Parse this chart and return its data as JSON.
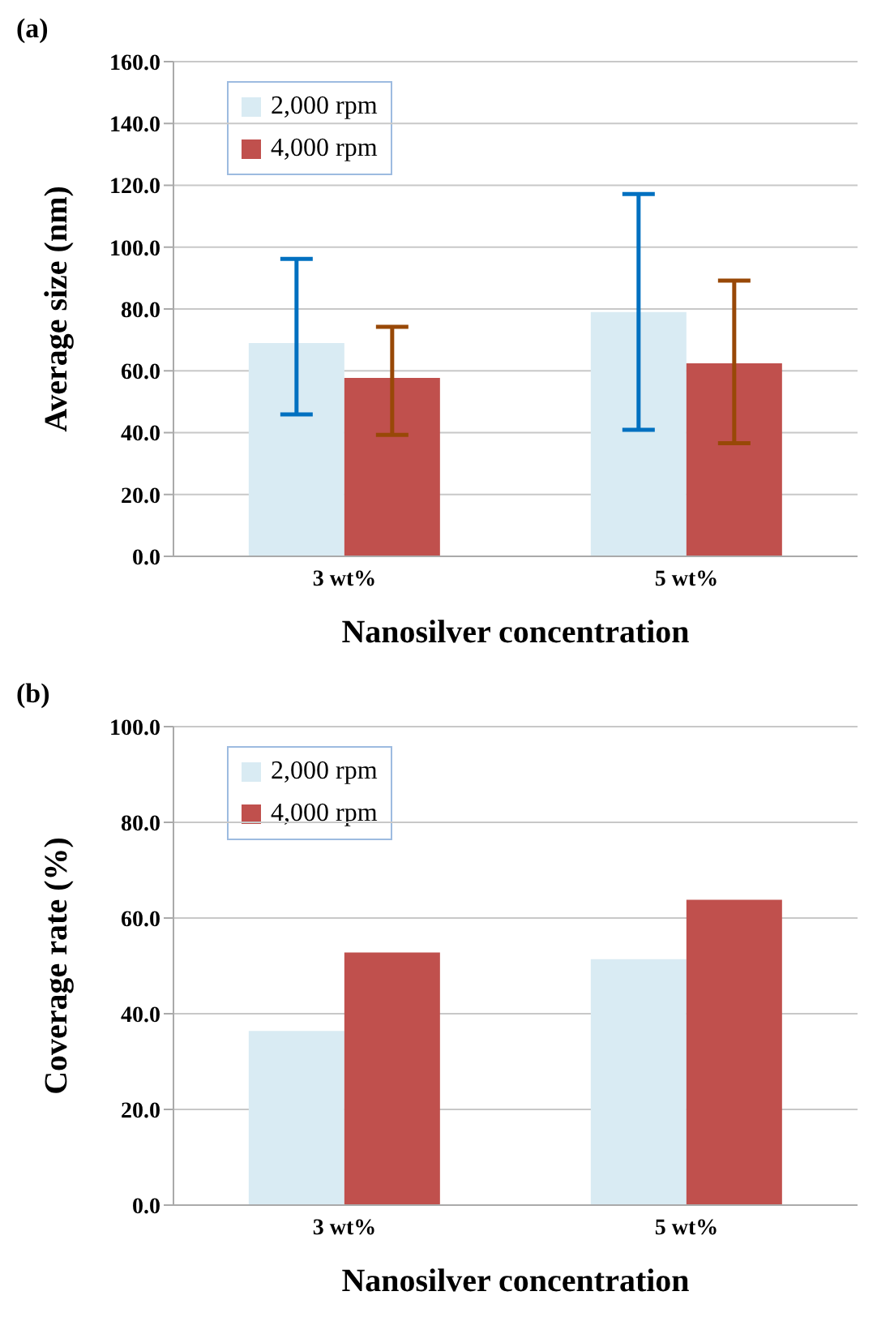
{
  "chart_data": [
    {
      "type": "bar",
      "title": "(a)",
      "xlabel": "Nanosilver concentration",
      "ylabel": "Average size (nm)",
      "categories": [
        "3 wt%",
        "5 wt%"
      ],
      "series": [
        {
          "name": "2,000 rpm",
          "color": "#d9ebf3",
          "values": [
            69.0,
            79.0
          ],
          "errors": [
            [
              45.9,
              96.2
            ],
            [
              40.9,
              117.2
            ]
          ]
        },
        {
          "name": "4,000 rpm",
          "color": "#c0504d",
          "values": [
            57.7,
            62.4
          ],
          "errors": [
            [
              39.3,
              74.2
            ],
            [
              36.6,
              89.2
            ]
          ]
        }
      ],
      "ylim": [
        0,
        160
      ],
      "yticks": [
        {
          "value": 0,
          "label": "0.0"
        },
        {
          "value": 20,
          "label": "20.0"
        },
        {
          "value": 40,
          "label": "40.0"
        },
        {
          "value": 60,
          "label": "60.0"
        },
        {
          "value": 80,
          "label": "80.0"
        },
        {
          "value": 100,
          "label": "100.0"
        },
        {
          "value": 120,
          "label": "120.0"
        },
        {
          "value": 140,
          "label": "140.0"
        },
        {
          "value": 160,
          "label": "160.0"
        }
      ],
      "grid": "y",
      "legend": "top left"
    },
    {
      "type": "bar",
      "title": "(b)",
      "xlabel": "Nanosilver concentration",
      "ylabel": "Coverage rate (%)",
      "categories": [
        "3 wt%",
        "5 wt%"
      ],
      "series": [
        {
          "name": "2,000 rpm",
          "color": "#d9ebf3",
          "values": [
            36.4,
            51.4
          ]
        },
        {
          "name": "4,000 rpm",
          "color": "#c0504d",
          "values": [
            52.8,
            63.8
          ]
        }
      ],
      "ylim": [
        0,
        100
      ],
      "yticks": [
        {
          "value": 0,
          "label": "0.0"
        },
        {
          "value": 20,
          "label": "20.0"
        },
        {
          "value": 40,
          "label": "40.0"
        },
        {
          "value": 60,
          "label": "60.0"
        },
        {
          "value": 80,
          "label": "80.0"
        },
        {
          "value": 100,
          "label": "100.0"
        }
      ],
      "grid": "y",
      "legend": "top left"
    }
  ]
}
